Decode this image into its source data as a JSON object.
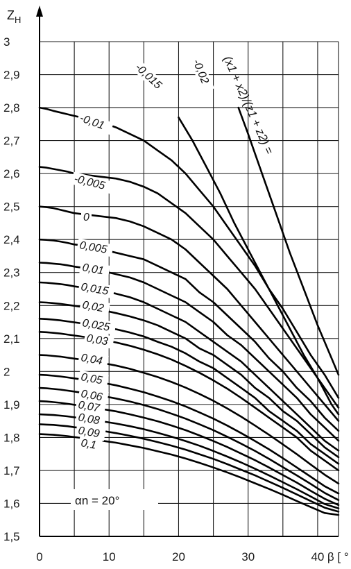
{
  "chart_data": {
    "type": "line",
    "title": "",
    "xlabel": "β [ ° ]",
    "ylabel": "Z_H",
    "xlabel_text": "β [ ° ]",
    "ylabel_text": "ZH",
    "ylabel_main": "Z",
    "ylabel_sub": "H",
    "xlim": [
      0,
      43
    ],
    "ylim": [
      1.5,
      3.0
    ],
    "x_ticks": [
      0,
      10,
      20,
      30,
      40
    ],
    "x_tick_labels": [
      "0",
      "10",
      "20",
      "30",
      "40"
    ],
    "y_ticks": [
      1.5,
      1.6,
      1.7,
      1.8,
      1.9,
      2.0,
      2.1,
      2.2,
      2.3,
      2.4,
      2.5,
      2.6,
      2.7,
      2.8,
      2.9,
      3.0
    ],
    "y_tick_labels": [
      "1,5",
      "1,6",
      "1,7",
      "1,8",
      "1,9",
      "2",
      "2,1",
      "2,2",
      "2,3",
      "2,4",
      "2,5",
      "2,6",
      "2,7",
      "2,8",
      "2,9",
      "3"
    ],
    "grid": true,
    "parameter_label": "(x1 + x2)/(z1 + z2) =",
    "annotation": "αn = 20°",
    "series": [
      {
        "name": "-0,02",
        "label": "-0,02",
        "x": [
          28.6,
          30,
          32,
          34,
          36,
          38,
          40,
          42,
          43
        ],
        "y": [
          2.8,
          2.72,
          2.6,
          2.48,
          2.36,
          2.25,
          2.14,
          2.04,
          1.99
        ]
      },
      {
        "name": "-0,015",
        "label": "-0,015",
        "x": [
          20,
          22,
          24,
          26,
          28,
          30,
          32,
          34,
          36,
          38,
          40,
          42,
          43
        ],
        "y": [
          2.77,
          2.7,
          2.62,
          2.54,
          2.45,
          2.37,
          2.29,
          2.21,
          2.13,
          2.05,
          1.98,
          1.9,
          1.87
        ]
      },
      {
        "name": "-0,01",
        "label": "-0,01",
        "x": [
          0,
          1,
          2,
          3,
          4,
          5,
          7,
          9,
          11,
          13,
          15,
          17,
          19,
          21,
          23,
          25,
          27,
          29,
          31,
          33,
          35,
          37,
          39,
          41,
          43
        ],
        "y": [
          2.8,
          2.796,
          2.79,
          2.785,
          2.78,
          2.775,
          2.765,
          2.755,
          2.74,
          2.72,
          2.7,
          2.67,
          2.64,
          2.6,
          2.55,
          2.5,
          2.44,
          2.38,
          2.32,
          2.25,
          2.19,
          2.12,
          2.05,
          1.99,
          1.92
        ]
      },
      {
        "name": "-0,005",
        "label": "-0,005",
        "x": [
          0,
          1,
          2,
          3,
          4,
          5,
          7,
          9,
          11,
          13,
          15,
          17,
          19,
          21,
          23,
          25,
          27,
          29,
          31,
          33,
          35,
          37,
          39,
          41,
          43
        ],
        "y": [
          2.62,
          2.618,
          2.614,
          2.61,
          2.606,
          2.6,
          2.595,
          2.59,
          2.585,
          2.575,
          2.56,
          2.54,
          2.51,
          2.48,
          2.44,
          2.4,
          2.35,
          2.3,
          2.25,
          2.19,
          2.13,
          2.07,
          2.01,
          1.95,
          1.89
        ]
      },
      {
        "name": "0",
        "label": "0",
        "x": [
          0,
          1,
          2,
          3,
          4,
          5,
          7,
          9,
          11,
          13,
          15,
          17,
          19,
          21,
          23,
          25,
          27,
          29,
          31,
          33,
          35,
          37,
          39,
          41,
          43
        ],
        "y": [
          2.5,
          2.498,
          2.495,
          2.49,
          2.485,
          2.48,
          2.475,
          2.47,
          2.465,
          2.455,
          2.44,
          2.42,
          2.4,
          2.37,
          2.33,
          2.29,
          2.25,
          2.2,
          2.15,
          2.1,
          2.05,
          2.0,
          1.95,
          1.9,
          1.85
        ]
      },
      {
        "name": "0,005",
        "label": "0,005",
        "x": [
          0,
          1,
          2,
          3,
          4,
          5,
          7,
          9,
          11,
          13,
          15,
          17,
          19,
          21,
          23,
          25,
          27,
          29,
          31,
          33,
          35,
          37,
          39,
          41,
          43
        ],
        "y": [
          2.4,
          2.399,
          2.397,
          2.394,
          2.39,
          2.385,
          2.38,
          2.37,
          2.36,
          2.35,
          2.34,
          2.32,
          2.3,
          2.28,
          2.24,
          2.21,
          2.17,
          2.13,
          2.09,
          2.04,
          2.0,
          1.95,
          1.91,
          1.86,
          1.82
        ]
      },
      {
        "name": "0,01",
        "label": "0,01",
        "x": [
          0,
          1,
          2,
          3,
          4,
          5,
          7,
          9,
          11,
          13,
          15,
          17,
          19,
          21,
          23,
          25,
          27,
          29,
          31,
          33,
          35,
          37,
          39,
          41,
          43
        ],
        "y": [
          2.33,
          2.329,
          2.327,
          2.325,
          2.322,
          2.318,
          2.312,
          2.305,
          2.295,
          2.285,
          2.27,
          2.25,
          2.23,
          2.21,
          2.18,
          2.15,
          2.11,
          2.08,
          2.04,
          2.0,
          1.96,
          1.92,
          1.87,
          1.83,
          1.79
        ]
      },
      {
        "name": "0,015",
        "label": "0,015",
        "x": [
          0,
          1,
          2,
          3,
          4,
          5,
          7,
          9,
          11,
          13,
          15,
          17,
          19,
          21,
          23,
          25,
          27,
          29,
          31,
          33,
          35,
          37,
          39,
          41,
          43
        ],
        "y": [
          2.27,
          2.269,
          2.267,
          2.265,
          2.262,
          2.258,
          2.252,
          2.245,
          2.236,
          2.225,
          2.21,
          2.19,
          2.17,
          2.15,
          2.12,
          2.09,
          2.06,
          2.03,
          1.99,
          1.95,
          1.91,
          1.87,
          1.83,
          1.79,
          1.76
        ]
      },
      {
        "name": "0,02",
        "label": "0,02",
        "x": [
          0,
          1,
          2,
          3,
          4,
          5,
          7,
          9,
          11,
          13,
          15,
          17,
          19,
          21,
          23,
          25,
          27,
          29,
          31,
          33,
          35,
          37,
          39,
          41,
          43
        ],
        "y": [
          2.21,
          2.209,
          2.207,
          2.205,
          2.202,
          2.199,
          2.193,
          2.186,
          2.177,
          2.167,
          2.155,
          2.14,
          2.12,
          2.1,
          2.07,
          2.05,
          2.02,
          1.99,
          1.95,
          1.92,
          1.88,
          1.85,
          1.81,
          1.77,
          1.74
        ]
      },
      {
        "name": "0,025",
        "label": "0,025",
        "x": [
          0,
          1,
          2,
          3,
          4,
          5,
          7,
          9,
          11,
          13,
          15,
          17,
          19,
          21,
          23,
          25,
          27,
          29,
          31,
          33,
          35,
          37,
          39,
          41,
          43
        ],
        "y": [
          2.16,
          2.159,
          2.157,
          2.155,
          2.152,
          2.149,
          2.143,
          2.136,
          2.128,
          2.118,
          2.106,
          2.09,
          2.075,
          2.055,
          2.03,
          2.01,
          1.98,
          1.95,
          1.92,
          1.88,
          1.85,
          1.82,
          1.78,
          1.75,
          1.72
        ]
      },
      {
        "name": "0,03",
        "label": "0,03",
        "x": [
          0,
          1,
          2,
          3,
          4,
          5,
          7,
          9,
          11,
          13,
          15,
          17,
          19,
          21,
          23,
          25,
          27,
          29,
          31,
          33,
          35,
          37,
          39,
          41,
          43
        ],
        "y": [
          2.12,
          2.119,
          2.117,
          2.115,
          2.112,
          2.109,
          2.103,
          2.096,
          2.088,
          2.078,
          2.066,
          2.052,
          2.036,
          2.017,
          1.996,
          1.973,
          1.948,
          1.92,
          1.89,
          1.86,
          1.83,
          1.8,
          1.76,
          1.73,
          1.7
        ]
      },
      {
        "name": "0,04",
        "label": "0,04",
        "x": [
          0,
          1,
          2,
          3,
          4,
          5,
          7,
          9,
          11,
          13,
          15,
          17,
          19,
          21,
          23,
          25,
          27,
          29,
          31,
          33,
          35,
          37,
          39,
          41,
          43
        ],
        "y": [
          2.05,
          2.049,
          2.047,
          2.045,
          2.042,
          2.039,
          2.033,
          2.026,
          2.018,
          2.008,
          1.996,
          1.983,
          1.968,
          1.951,
          1.932,
          1.911,
          1.888,
          1.863,
          1.836,
          1.808,
          1.779,
          1.749,
          1.718,
          1.687,
          1.66
        ]
      },
      {
        "name": "0,05",
        "label": "0,05",
        "x": [
          0,
          1,
          2,
          3,
          4,
          5,
          7,
          9,
          11,
          13,
          15,
          17,
          19,
          21,
          23,
          25,
          27,
          29,
          31,
          33,
          35,
          37,
          39,
          41,
          43
        ],
        "y": [
          1.99,
          1.989,
          1.987,
          1.985,
          1.982,
          1.979,
          1.973,
          1.966,
          1.958,
          1.948,
          1.937,
          1.924,
          1.91,
          1.894,
          1.876,
          1.857,
          1.836,
          1.813,
          1.789,
          1.764,
          1.737,
          1.709,
          1.681,
          1.652,
          1.63
        ]
      },
      {
        "name": "0,06",
        "label": "0,06",
        "x": [
          0,
          1,
          2,
          3,
          4,
          5,
          7,
          9,
          11,
          13,
          15,
          17,
          19,
          21,
          23,
          25,
          27,
          29,
          31,
          33,
          35,
          37,
          39,
          41,
          43
        ],
        "y": [
          1.95,
          1.949,
          1.947,
          1.945,
          1.942,
          1.939,
          1.933,
          1.926,
          1.918,
          1.909,
          1.898,
          1.886,
          1.872,
          1.857,
          1.84,
          1.822,
          1.802,
          1.781,
          1.759,
          1.735,
          1.71,
          1.685,
          1.659,
          1.632,
          1.61
        ]
      },
      {
        "name": "0,07",
        "label": "0,07",
        "x": [
          0,
          1,
          2,
          3,
          4,
          5,
          7,
          9,
          11,
          13,
          15,
          17,
          19,
          21,
          23,
          25,
          27,
          29,
          31,
          33,
          35,
          37,
          39,
          41,
          43
        ],
        "y": [
          1.91,
          1.909,
          1.907,
          1.905,
          1.902,
          1.899,
          1.893,
          1.886,
          1.879,
          1.87,
          1.86,
          1.849,
          1.836,
          1.822,
          1.806,
          1.789,
          1.771,
          1.751,
          1.731,
          1.709,
          1.686,
          1.663,
          1.638,
          1.614,
          1.595
        ]
      },
      {
        "name": "0,08",
        "label": "0,08",
        "x": [
          0,
          1,
          2,
          3,
          4,
          5,
          7,
          9,
          11,
          13,
          15,
          17,
          19,
          21,
          23,
          25,
          27,
          29,
          31,
          33,
          35,
          37,
          39,
          41,
          43
        ],
        "y": [
          1.87,
          1.869,
          1.868,
          1.866,
          1.864,
          1.861,
          1.855,
          1.849,
          1.842,
          1.834,
          1.825,
          1.814,
          1.802,
          1.789,
          1.775,
          1.759,
          1.742,
          1.724,
          1.705,
          1.685,
          1.664,
          1.643,
          1.621,
          1.598,
          1.585
        ]
      },
      {
        "name": "0,09",
        "label": "0,09",
        "x": [
          0,
          1,
          2,
          3,
          4,
          5,
          7,
          9,
          11,
          13,
          15,
          17,
          19,
          21,
          23,
          25,
          27,
          29,
          31,
          33,
          35,
          37,
          39,
          41,
          43
        ],
        "y": [
          1.84,
          1.839,
          1.838,
          1.836,
          1.834,
          1.831,
          1.826,
          1.82,
          1.813,
          1.805,
          1.796,
          1.786,
          1.775,
          1.763,
          1.749,
          1.735,
          1.719,
          1.702,
          1.685,
          1.666,
          1.647,
          1.627,
          1.607,
          1.587,
          1.575
        ]
      },
      {
        "name": "0,1",
        "label": "0,1",
        "x": [
          0,
          1,
          2,
          3,
          4,
          5,
          7,
          9,
          11,
          13,
          15,
          17,
          19,
          21,
          23,
          25,
          27,
          29,
          31,
          33,
          35,
          37,
          39,
          41,
          43
        ],
        "y": [
          1.81,
          1.809,
          1.808,
          1.806,
          1.804,
          1.801,
          1.796,
          1.79,
          1.784,
          1.776,
          1.768,
          1.758,
          1.748,
          1.736,
          1.723,
          1.709,
          1.694,
          1.678,
          1.661,
          1.644,
          1.626,
          1.607,
          1.589,
          1.571,
          1.565
        ]
      }
    ]
  }
}
